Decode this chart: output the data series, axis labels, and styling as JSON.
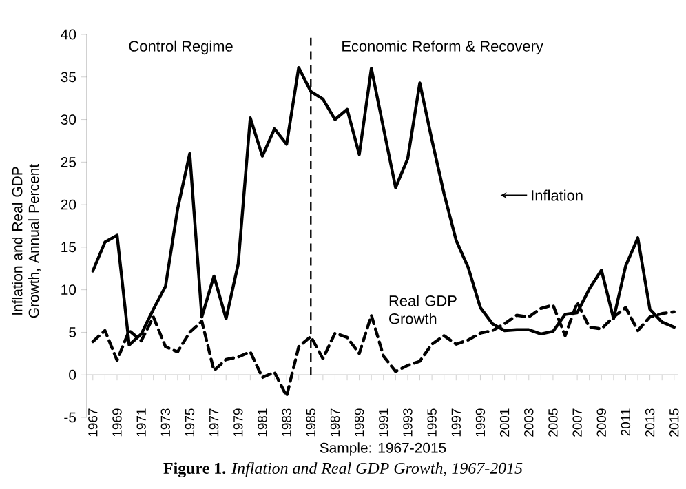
{
  "chart_data": {
    "type": "line",
    "title": "**Figure 1.** *Inflation and Real GDP Growth, 1967-2015*",
    "xlabel": "Sample: 1967-2015",
    "ylabel": "Inflation and Real GDP Growth, Annual Percent",
    "categories": [
      "1967",
      null,
      "1969",
      null,
      "1971",
      null,
      "1973",
      null,
      "1975",
      null,
      "1977",
      null,
      "1979",
      null,
      "1981",
      null,
      "1983",
      null,
      "1985",
      null,
      "1987",
      null,
      "1989",
      null,
      "1991",
      null,
      "1993",
      null,
      "1995",
      null,
      "1997",
      null,
      "1999",
      null,
      "2001",
      null,
      "2003",
      null,
      "2005",
      null,
      "2007",
      null,
      "2009",
      null,
      "2011",
      null,
      "2013",
      null,
      "2015"
    ],
    "series": [
      {
        "name": "Inflation",
        "color": "#000000",
        "line_style": "solid",
        "values": [
          12.2,
          15.6,
          16.4,
          3.5,
          4.8,
          7.7,
          10.4,
          19.5,
          26,
          6.8,
          11.6,
          6.6,
          13,
          30.2,
          25.7,
          28.9,
          27.1,
          36.1,
          33.3,
          32.4,
          30,
          31.2,
          25.9,
          36,
          29,
          22,
          25.4,
          34.3,
          27.6,
          21.3,
          15.8,
          12.6,
          7.9,
          6,
          5.2,
          5.3,
          5.3,
          4.8,
          5.1,
          7.1,
          7.3,
          10.1,
          12.3,
          6.6,
          12.8,
          16.1,
          7.7,
          6.2,
          5.6
        ]
      },
      {
        "name": "Real GDP Growth",
        "color": "#000000",
        "line_style": "dashed",
        "values": [
          3.9,
          5.2,
          1.7,
          5.2,
          4,
          6.8,
          3.3,
          2.7,
          5,
          6.3,
          0.5,
          1.8,
          2.1,
          2.7,
          -0.3,
          0.3,
          -2.5,
          3.3,
          4.5,
          1.9,
          4.9,
          4.4,
          2.5,
          7,
          2.2,
          0.4,
          1.1,
          1.6,
          3.6,
          4.6,
          3.6,
          4.1,
          4.9,
          5.2,
          6,
          7,
          6.8,
          7.8,
          8.2,
          4.6,
          8.5,
          5.6,
          5.4,
          6.8,
          7.9,
          5.2,
          6.8,
          7.2,
          7.4
        ]
      }
    ],
    "ylim": [
      -5,
      40
    ],
    "yticks": [
      -5,
      0,
      5,
      10,
      15,
      20,
      25,
      30,
      35,
      40
    ],
    "ref_lines": [
      {
        "axis": "x",
        "value": "1985",
        "line_style": "dashed",
        "color": "#000000"
      }
    ],
    "annotations": [
      "Control Regime",
      "Economic Reform  & Recovery"
    ],
    "grid": false,
    "marker": "none"
  }
}
